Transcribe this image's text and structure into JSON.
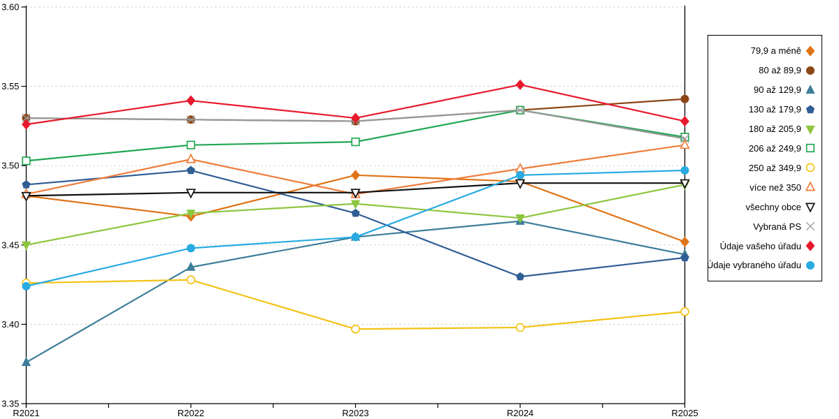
{
  "page": {
    "background": "#ffffff"
  },
  "chart_data": {
    "type": "line",
    "title": "",
    "xlabel": "",
    "ylabel": "",
    "x_categories": [
      "R2021",
      "R2022",
      "R2023",
      "R2024",
      "R2025"
    ],
    "ylim": [
      3.35,
      3.6
    ],
    "yticks": [
      3.35,
      3.4,
      3.45,
      3.5,
      3.55,
      3.6
    ],
    "grid": "horizontal-dashed",
    "grid_color": "#c3c3c3",
    "axis_color": "#000000",
    "legend_position": "right-outside",
    "series": [
      {
        "name": "79,9 a méně",
        "color": "#E07419",
        "marker": "diamond",
        "marker_fill": "filled",
        "values": [
          3.481,
          3.468,
          3.494,
          3.49,
          3.452
        ]
      },
      {
        "name": "80 až 89,9",
        "color": "#8C4616",
        "marker": "circle",
        "marker_fill": "filled",
        "values": [
          3.53,
          3.529,
          3.528,
          3.535,
          3.542
        ]
      },
      {
        "name": "90 až 129,9",
        "color": "#3D7E9A",
        "marker": "triangle-up",
        "marker_fill": "filled",
        "values": [
          3.376,
          3.436,
          3.455,
          3.465,
          3.444
        ]
      },
      {
        "name": "130 až 179,9",
        "color": "#305E95",
        "marker": "pentagon",
        "marker_fill": "filled",
        "values": [
          3.488,
          3.497,
          3.47,
          3.43,
          3.442
        ]
      },
      {
        "name": "180 až 205,9",
        "color": "#8DC63F",
        "marker": "triangle-down",
        "marker_fill": "filled",
        "values": [
          3.45,
          3.47,
          3.476,
          3.467,
          3.488
        ]
      },
      {
        "name": "206 až 249,9",
        "color": "#22A753",
        "marker": "square",
        "marker_fill": "open",
        "values": [
          3.503,
          3.513,
          3.515,
          3.535,
          3.518
        ]
      },
      {
        "name": "250 až 349,9",
        "color": "#F3C317",
        "marker": "circle",
        "marker_fill": "open",
        "values": [
          3.426,
          3.428,
          3.397,
          3.398,
          3.408
        ]
      },
      {
        "name": "více než 350",
        "color": "#EF7D3C",
        "marker": "triangle-up",
        "marker_fill": "open",
        "values": [
          3.482,
          3.504,
          3.482,
          3.498,
          3.513
        ]
      },
      {
        "name": "všechny obce",
        "color": "#111111",
        "marker": "triangle-down",
        "marker_fill": "open",
        "values": [
          3.481,
          3.483,
          3.483,
          3.489,
          3.489
        ]
      },
      {
        "name": "Vybraná PS",
        "color": "#999999",
        "marker": "x",
        "marker_fill": "open",
        "values": [
          3.53,
          3.529,
          3.528,
          3.535,
          3.517
        ]
      },
      {
        "name": "Údaje vašeho úřadu",
        "color": "#E8192C",
        "marker": "diamond",
        "marker_fill": "filled",
        "values": [
          3.526,
          3.541,
          3.53,
          3.551,
          3.528
        ]
      },
      {
        "name": "Údaje vybraného úřadu",
        "color": "#29ABE2",
        "marker": "circle",
        "marker_fill": "filled",
        "values": [
          3.424,
          3.448,
          3.455,
          3.494,
          3.497
        ]
      }
    ]
  }
}
